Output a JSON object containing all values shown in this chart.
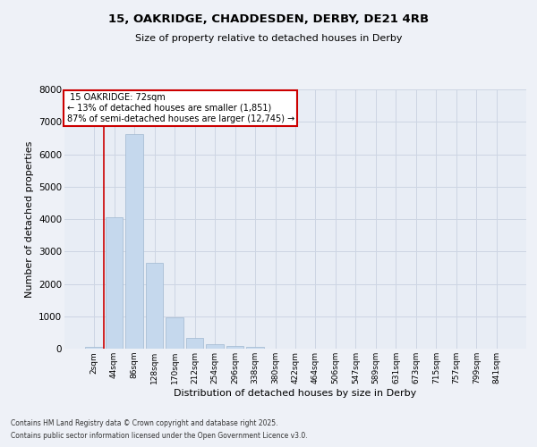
{
  "title_line1": "15, OAKRIDGE, CHADDESDEN, DERBY, DE21 4RB",
  "title_line2": "Size of property relative to detached houses in Derby",
  "xlabel": "Distribution of detached houses by size in Derby",
  "ylabel": "Number of detached properties",
  "categories": [
    "2sqm",
    "44sqm",
    "86sqm",
    "128sqm",
    "170sqm",
    "212sqm",
    "254sqm",
    "296sqm",
    "338sqm",
    "380sqm",
    "422sqm",
    "464sqm",
    "506sqm",
    "547sqm",
    "589sqm",
    "631sqm",
    "673sqm",
    "715sqm",
    "757sqm",
    "799sqm",
    "841sqm"
  ],
  "values": [
    60,
    4050,
    6620,
    2640,
    960,
    340,
    140,
    80,
    50,
    0,
    0,
    0,
    0,
    0,
    0,
    0,
    0,
    0,
    0,
    0,
    0
  ],
  "bar_color": "#c5d8ed",
  "bar_edge_color": "#a0b8d0",
  "property_label": "15 OAKRIDGE: 72sqm",
  "pct_smaller": 13,
  "n_smaller": 1851,
  "pct_larger_semi": 87,
  "n_larger_semi": 12745,
  "vline_color": "#cc0000",
  "annotation_box_color": "#cc0000",
  "ylim": [
    0,
    8000
  ],
  "yticks": [
    0,
    1000,
    2000,
    3000,
    4000,
    5000,
    6000,
    7000,
    8000
  ],
  "grid_color": "#cdd5e3",
  "background_color": "#e8edf5",
  "fig_background": "#eef1f7",
  "footnote1": "Contains HM Land Registry data © Crown copyright and database right 2025.",
  "footnote2": "Contains public sector information licensed under the Open Government Licence v3.0."
}
